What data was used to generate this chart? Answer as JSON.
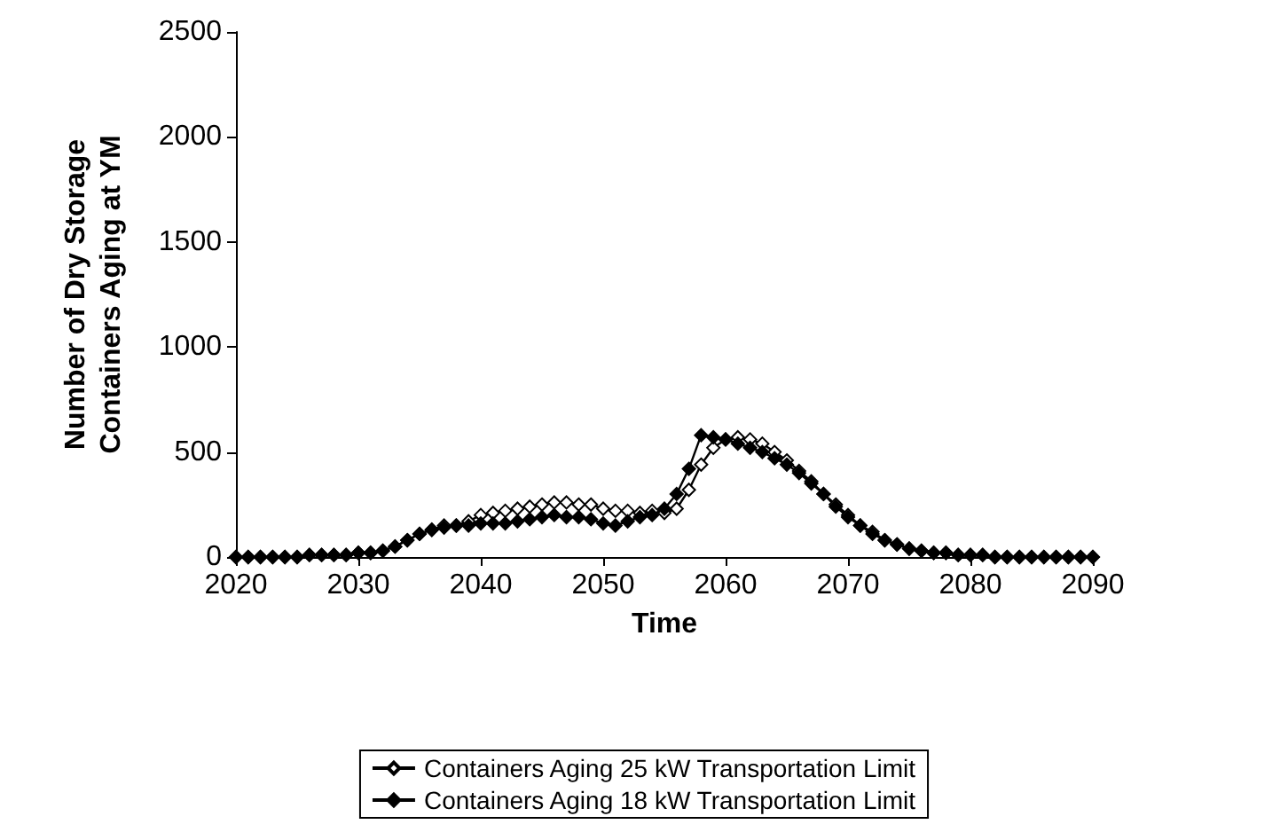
{
  "chart_data": {
    "type": "line",
    "xlabel": "Time",
    "ylabel": "Number of Dry Storage\nContainers Aging at YM",
    "x": [
      2020,
      2021,
      2022,
      2023,
      2024,
      2025,
      2026,
      2027,
      2028,
      2029,
      2030,
      2031,
      2032,
      2033,
      2034,
      2035,
      2036,
      2037,
      2038,
      2039,
      2040,
      2041,
      2042,
      2043,
      2044,
      2045,
      2046,
      2047,
      2048,
      2049,
      2050,
      2051,
      2052,
      2053,
      2054,
      2055,
      2056,
      2057,
      2058,
      2059,
      2060,
      2061,
      2062,
      2063,
      2064,
      2065,
      2066,
      2067,
      2068,
      2069,
      2070,
      2071,
      2072,
      2073,
      2074,
      2075,
      2076,
      2077,
      2078,
      2079,
      2080,
      2081,
      2082,
      2083,
      2084,
      2085,
      2086,
      2087,
      2088,
      2089,
      2090
    ],
    "series": [
      {
        "name": "Containers Aging 25 kW Transportation Limit",
        "color": "#000000",
        "values": [
          0,
          0,
          0,
          0,
          0,
          0,
          10,
          10,
          10,
          10,
          20,
          20,
          30,
          50,
          80,
          110,
          130,
          150,
          150,
          170,
          200,
          210,
          220,
          230,
          240,
          250,
          260,
          260,
          250,
          250,
          230,
          220,
          220,
          210,
          220,
          210,
          230,
          320,
          440,
          520,
          560,
          570,
          560,
          540,
          500,
          460,
          410,
          360,
          300,
          250,
          200,
          150,
          120,
          80,
          60,
          40,
          30,
          20,
          20,
          10,
          10,
          10,
          0,
          0,
          0,
          0,
          0,
          0,
          0,
          0,
          0
        ]
      },
      {
        "name": "Containers Aging 18 kW Transportation Limit",
        "color": "#000000",
        "values": [
          0,
          0,
          0,
          0,
          0,
          0,
          10,
          10,
          10,
          10,
          20,
          20,
          30,
          50,
          80,
          110,
          130,
          140,
          150,
          150,
          160,
          160,
          160,
          170,
          180,
          190,
          200,
          190,
          190,
          180,
          160,
          150,
          170,
          190,
          200,
          230,
          300,
          420,
          580,
          570,
          560,
          540,
          520,
          500,
          470,
          440,
          400,
          350,
          300,
          240,
          190,
          150,
          110,
          80,
          60,
          40,
          30,
          20,
          20,
          10,
          10,
          10,
          0,
          0,
          0,
          0,
          0,
          0,
          0,
          0,
          0
        ]
      }
    ],
    "xlim": [
      2020,
      2090
    ],
    "xticks": [
      2020,
      2030,
      2040,
      2050,
      2060,
      2070,
      2080,
      2090
    ],
    "ylim": [
      0,
      2500
    ],
    "yticks": [
      0,
      500,
      1000,
      1500,
      2000,
      2500
    ],
    "marker": "diamond",
    "line_style": "solid",
    "legend": "bottom",
    "grid": false
  }
}
